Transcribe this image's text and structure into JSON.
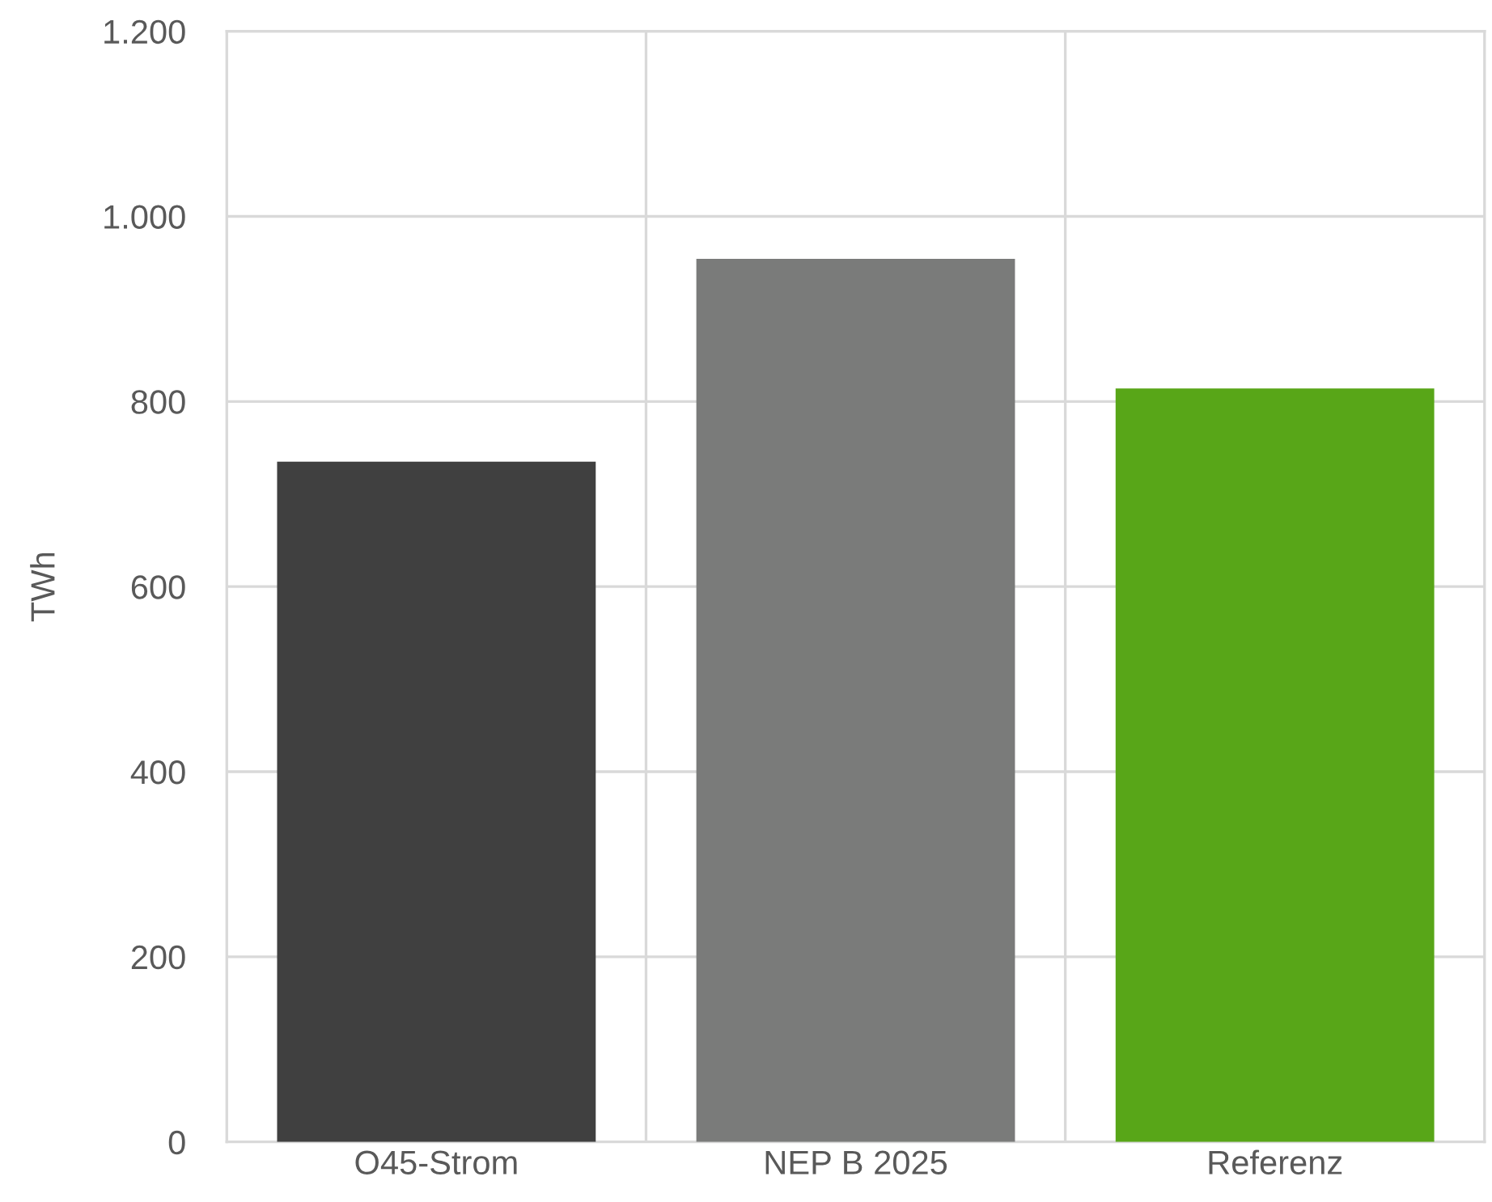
{
  "chart_data": {
    "type": "bar",
    "ylabel": "TWh",
    "categories": [
      "O45-Strom",
      "NEP B 2025",
      "Referenz"
    ],
    "values": [
      735,
      954,
      814
    ],
    "colors": [
      "#404040",
      "#7a7b7a",
      "#58a618"
    ],
    "ylim": [
      0,
      1200
    ],
    "yticks": [
      0,
      200,
      400,
      600,
      800,
      {
        "value": 1000,
        "label": "1.000"
      },
      {
        "value": 1200,
        "label": "1.200"
      }
    ],
    "grid": true
  }
}
